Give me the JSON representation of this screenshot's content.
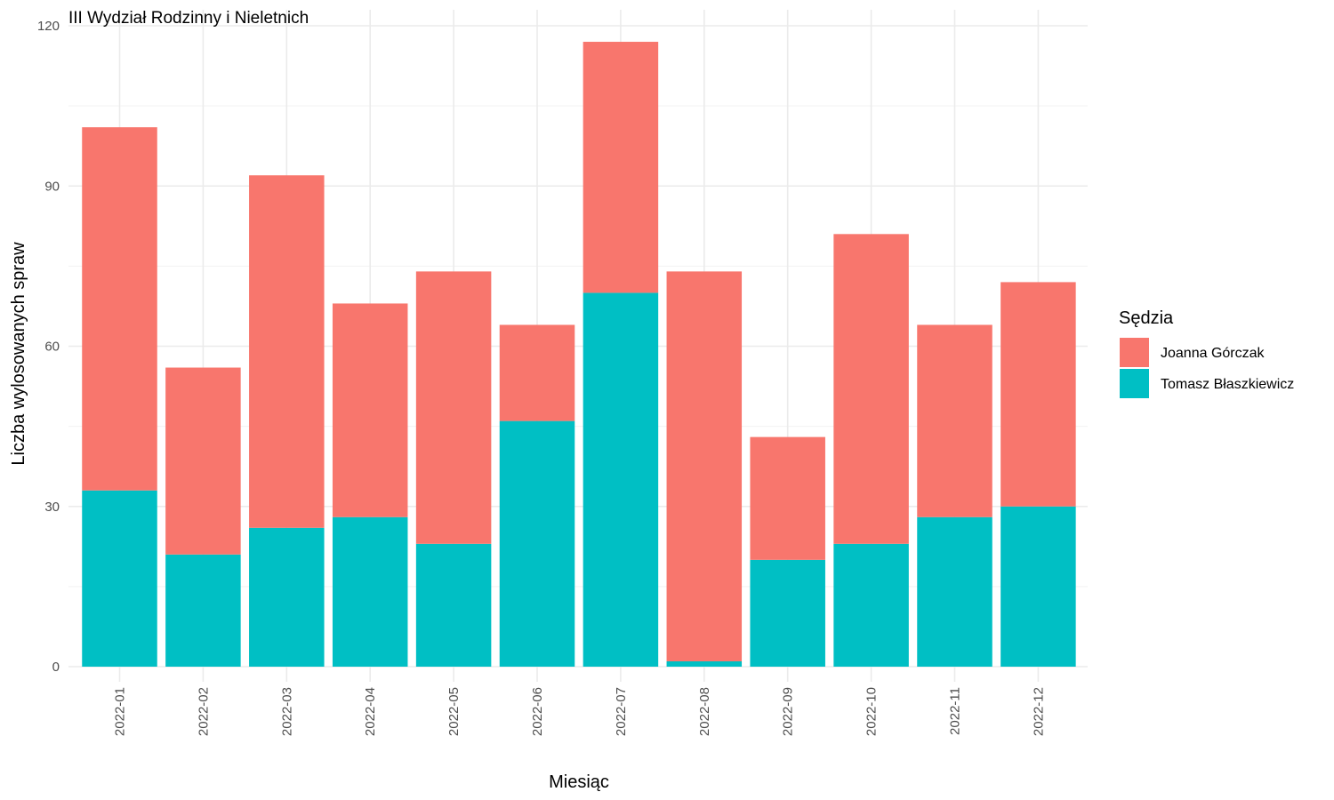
{
  "chart_data": {
    "type": "bar",
    "stacked": true,
    "title": "III Wydział Rodzinny i Nieletnich",
    "xlabel": "Miesiąc",
    "ylabel": "Liczba wylosowanych spraw",
    "categories": [
      "2022-01",
      "2022-02",
      "2022-03",
      "2022-04",
      "2022-05",
      "2022-06",
      "2022-07",
      "2022-08",
      "2022-09",
      "2022-10",
      "2022-11",
      "2022-12"
    ],
    "series": [
      {
        "name": "Tomasz Błaszkiewicz",
        "color": "#00BFC4",
        "values": [
          33,
          21,
          26,
          28,
          23,
          46,
          70,
          1,
          20,
          23,
          28,
          30
        ]
      },
      {
        "name": "Joanna Górczak",
        "color": "#F8766D",
        "values": [
          68,
          35,
          66,
          40,
          51,
          18,
          47,
          73,
          23,
          58,
          36,
          42
        ]
      }
    ],
    "ylim": [
      0,
      120
    ],
    "yticks": [
      0,
      30,
      60,
      90,
      120
    ],
    "grid": true,
    "legend": {
      "title": "Sędzia",
      "position": "right",
      "entries": [
        {
          "label": "Joanna Górczak",
          "color": "#F8766D"
        },
        {
          "label": "Tomasz Błaszkiewicz",
          "color": "#00BFC4"
        }
      ]
    }
  }
}
